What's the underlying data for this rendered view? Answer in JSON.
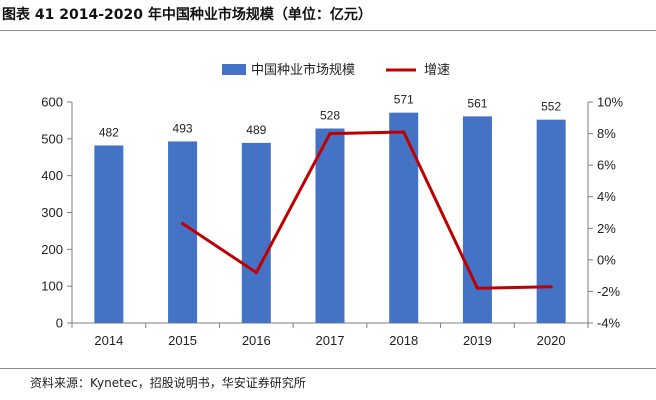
{
  "figure": {
    "title": "图表 41 2014-2020 年中国种业市场规模（单位：亿元）",
    "source": "资料来源：Kynetec，招股说明书，华安证券研究所"
  },
  "colors": {
    "bar": "#4472C4",
    "line": "#C00000",
    "axis": "#7f7f7f"
  },
  "chart_data": {
    "type": "bar",
    "title": "",
    "xlabel": "",
    "ylabel": "",
    "categories": [
      "2014",
      "2015",
      "2016",
      "2017",
      "2018",
      "2019",
      "2020"
    ],
    "series": [
      {
        "name": "中国种业市场规模",
        "type": "bar",
        "axis": "left",
        "values": [
          482,
          493,
          489,
          528,
          571,
          561,
          552
        ],
        "data_labels": [
          "482",
          "493",
          "489",
          "528",
          "571",
          "561",
          "552"
        ]
      },
      {
        "name": "增速",
        "type": "line",
        "axis": "right",
        "values": [
          null,
          2.3,
          -0.8,
          8.0,
          8.1,
          -1.8,
          -1.7
        ]
      }
    ],
    "ylim": [
      0,
      600
    ],
    "yticks": [
      "0",
      "100",
      "200",
      "300",
      "400",
      "500",
      "600"
    ],
    "y2lim": [
      -4,
      10
    ],
    "y2ticks": [
      "-4%",
      "-2%",
      "0%",
      "2%",
      "4%",
      "6%",
      "8%",
      "10%"
    ],
    "legend": "top-center",
    "grid": false
  }
}
